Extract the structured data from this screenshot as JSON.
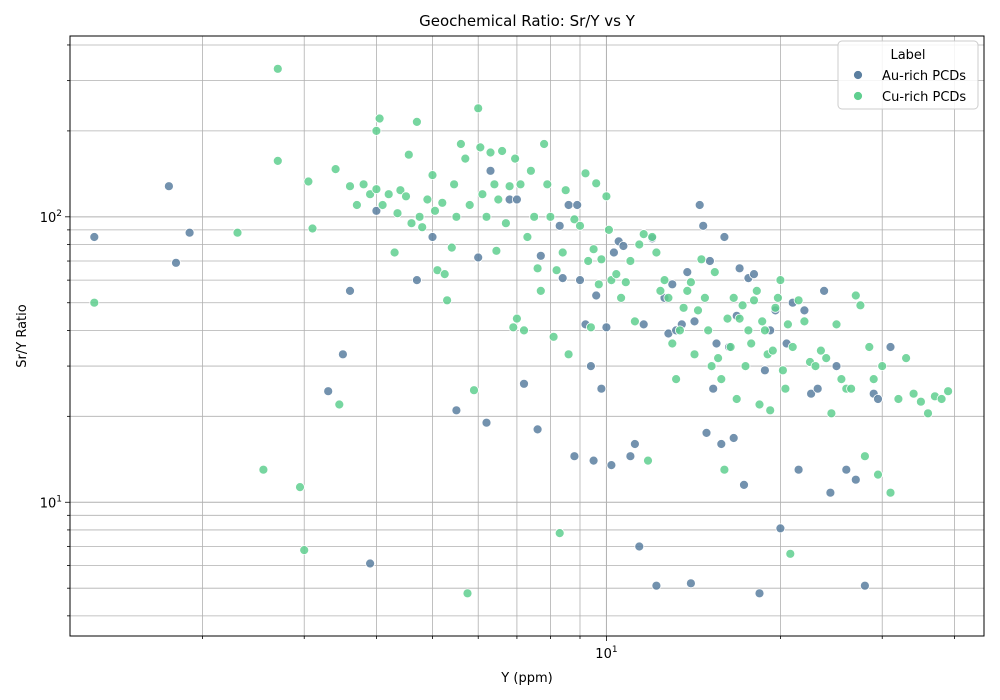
{
  "chart_data": {
    "type": "scatter",
    "title": "Geochemical Ratio: Sr/Y vs Y",
    "xlabel": "Y (ppm)",
    "ylabel": "Sr/Y Ratio",
    "xscale": "log",
    "yscale": "log",
    "xlim": [
      1.18,
      45
    ],
    "ylim": [
      3.4,
      430
    ],
    "x_major_ticks": [
      {
        "value": 10,
        "label": "10^1"
      }
    ],
    "y_major_ticks": [
      {
        "value": 10,
        "label": "10^1"
      },
      {
        "value": 100,
        "label": "10^2"
      }
    ],
    "grid": true,
    "legend": {
      "title": "Label",
      "placement": "top-right"
    },
    "series": [
      {
        "name": "Au-rich PCDs",
        "color": "#5b7fa0",
        "points": [
          [
            1.3,
            85
          ],
          [
            1.75,
            128
          ],
          [
            1.8,
            69
          ],
          [
            1.9,
            88
          ],
          [
            3.3,
            24.5
          ],
          [
            3.5,
            33
          ],
          [
            3.6,
            55
          ],
          [
            3.9,
            6.1
          ],
          [
            4.0,
            105
          ],
          [
            4.7,
            60
          ],
          [
            5.0,
            85
          ],
          [
            5.5,
            21
          ],
          [
            6.0,
            72
          ],
          [
            6.2,
            19
          ],
          [
            6.3,
            145
          ],
          [
            6.8,
            115
          ],
          [
            7.0,
            115
          ],
          [
            7.2,
            26
          ],
          [
            7.6,
            18
          ],
          [
            7.7,
            73
          ],
          [
            8.3,
            93
          ],
          [
            8.4,
            61
          ],
          [
            8.6,
            110
          ],
          [
            8.8,
            14.5
          ],
          [
            8.9,
            110
          ],
          [
            9.0,
            60
          ],
          [
            9.2,
            42
          ],
          [
            9.4,
            30
          ],
          [
            9.5,
            14
          ],
          [
            9.6,
            53
          ],
          [
            9.8,
            25
          ],
          [
            10.0,
            41
          ],
          [
            10.2,
            13.5
          ],
          [
            10.3,
            75
          ],
          [
            10.5,
            82
          ],
          [
            10.7,
            79
          ],
          [
            11.0,
            14.5
          ],
          [
            11.2,
            16
          ],
          [
            11.4,
            7
          ],
          [
            11.6,
            42
          ],
          [
            12.0,
            84
          ],
          [
            12.2,
            5.1
          ],
          [
            12.6,
            52
          ],
          [
            12.8,
            39
          ],
          [
            13.0,
            58
          ],
          [
            13.2,
            40
          ],
          [
            13.5,
            42
          ],
          [
            13.8,
            64
          ],
          [
            14.0,
            5.2
          ],
          [
            14.2,
            43
          ],
          [
            14.5,
            110
          ],
          [
            14.7,
            93
          ],
          [
            14.9,
            17.5
          ],
          [
            15.1,
            70
          ],
          [
            15.3,
            25
          ],
          [
            15.5,
            36
          ],
          [
            15.8,
            16
          ],
          [
            16.0,
            85
          ],
          [
            16.3,
            35
          ],
          [
            16.6,
            16.8
          ],
          [
            16.8,
            45
          ],
          [
            17.0,
            66
          ],
          [
            17.3,
            11.5
          ],
          [
            17.6,
            61
          ],
          [
            18.0,
            63
          ],
          [
            18.4,
            4.8
          ],
          [
            18.8,
            29
          ],
          [
            19.2,
            40
          ],
          [
            19.6,
            47
          ],
          [
            20.0,
            8.1
          ],
          [
            20.5,
            36
          ],
          [
            21.0,
            50
          ],
          [
            21.5,
            13
          ],
          [
            22.0,
            47
          ],
          [
            22.6,
            24
          ],
          [
            23.2,
            25
          ],
          [
            23.8,
            55
          ],
          [
            24.4,
            10.8
          ],
          [
            25.0,
            30
          ],
          [
            26.0,
            13
          ],
          [
            27.0,
            12
          ],
          [
            28.0,
            5.1
          ],
          [
            29.0,
            24
          ],
          [
            29.5,
            23
          ],
          [
            31.0,
            35
          ]
        ]
      },
      {
        "name": "Cu-rich PCDs",
        "color": "#5fcf8f",
        "points": [
          [
            1.3,
            50
          ],
          [
            2.3,
            88
          ],
          [
            2.55,
            13
          ],
          [
            2.7,
            330
          ],
          [
            2.7,
            157
          ],
          [
            2.95,
            11.3
          ],
          [
            3.0,
            6.8
          ],
          [
            3.05,
            133
          ],
          [
            3.1,
            91
          ],
          [
            3.4,
            147
          ],
          [
            3.45,
            22
          ],
          [
            3.6,
            128
          ],
          [
            3.7,
            110
          ],
          [
            3.8,
            130
          ],
          [
            3.9,
            120
          ],
          [
            4.0,
            125
          ],
          [
            4.0,
            200
          ],
          [
            4.05,
            221
          ],
          [
            4.1,
            110
          ],
          [
            4.2,
            120
          ],
          [
            4.3,
            75
          ],
          [
            4.35,
            103
          ],
          [
            4.4,
            124
          ],
          [
            4.5,
            118
          ],
          [
            4.55,
            165
          ],
          [
            4.6,
            95
          ],
          [
            4.7,
            215
          ],
          [
            4.75,
            100
          ],
          [
            4.8,
            92
          ],
          [
            4.9,
            115
          ],
          [
            5.0,
            140
          ],
          [
            5.05,
            105
          ],
          [
            5.1,
            65
          ],
          [
            5.2,
            112
          ],
          [
            5.25,
            63
          ],
          [
            5.3,
            51
          ],
          [
            5.4,
            78
          ],
          [
            5.45,
            130
          ],
          [
            5.5,
            100
          ],
          [
            5.6,
            180
          ],
          [
            5.7,
            160
          ],
          [
            5.75,
            4.8
          ],
          [
            5.8,
            110
          ],
          [
            5.9,
            24.7
          ],
          [
            6.0,
            240
          ],
          [
            6.05,
            175
          ],
          [
            6.1,
            120
          ],
          [
            6.2,
            100
          ],
          [
            6.3,
            168
          ],
          [
            6.4,
            130
          ],
          [
            6.45,
            76
          ],
          [
            6.5,
            115
          ],
          [
            6.6,
            170
          ],
          [
            6.7,
            95
          ],
          [
            6.8,
            128
          ],
          [
            6.9,
            41
          ],
          [
            6.95,
            160
          ],
          [
            7.0,
            44
          ],
          [
            7.1,
            130
          ],
          [
            7.2,
            40
          ],
          [
            7.3,
            85
          ],
          [
            7.4,
            145
          ],
          [
            7.5,
            100
          ],
          [
            7.6,
            66
          ],
          [
            7.7,
            55
          ],
          [
            7.8,
            180
          ],
          [
            7.9,
            130
          ],
          [
            8.0,
            100
          ],
          [
            8.1,
            38
          ],
          [
            8.2,
            65
          ],
          [
            8.3,
            7.8
          ],
          [
            8.4,
            75
          ],
          [
            8.5,
            124
          ],
          [
            8.6,
            33
          ],
          [
            8.8,
            98
          ],
          [
            9.0,
            93
          ],
          [
            9.2,
            142
          ],
          [
            9.3,
            70
          ],
          [
            9.4,
            41
          ],
          [
            9.5,
            77
          ],
          [
            9.6,
            131
          ],
          [
            9.7,
            58
          ],
          [
            9.8,
            71
          ],
          [
            10.0,
            118
          ],
          [
            10.1,
            90
          ],
          [
            10.2,
            60
          ],
          [
            10.4,
            63
          ],
          [
            10.6,
            52
          ],
          [
            10.8,
            59
          ],
          [
            11.0,
            70
          ],
          [
            11.2,
            43
          ],
          [
            11.4,
            80
          ],
          [
            11.6,
            87
          ],
          [
            11.8,
            14
          ],
          [
            12.0,
            85
          ],
          [
            12.2,
            75
          ],
          [
            12.4,
            55
          ],
          [
            12.6,
            60
          ],
          [
            12.8,
            52
          ],
          [
            13.0,
            36
          ],
          [
            13.2,
            27
          ],
          [
            13.4,
            40
          ],
          [
            13.6,
            48
          ],
          [
            13.8,
            55
          ],
          [
            14.0,
            59
          ],
          [
            14.2,
            33
          ],
          [
            14.4,
            47
          ],
          [
            14.6,
            71
          ],
          [
            14.8,
            52
          ],
          [
            15.0,
            40
          ],
          [
            15.2,
            30
          ],
          [
            15.4,
            64
          ],
          [
            15.6,
            32
          ],
          [
            15.8,
            27
          ],
          [
            16.0,
            13
          ],
          [
            16.2,
            44
          ],
          [
            16.4,
            35
          ],
          [
            16.6,
            52
          ],
          [
            16.8,
            23
          ],
          [
            17.0,
            44
          ],
          [
            17.2,
            49
          ],
          [
            17.4,
            30
          ],
          [
            17.6,
            40
          ],
          [
            17.8,
            36
          ],
          [
            18.0,
            51
          ],
          [
            18.2,
            55
          ],
          [
            18.4,
            22
          ],
          [
            18.6,
            43
          ],
          [
            18.8,
            40
          ],
          [
            19.0,
            33
          ],
          [
            19.2,
            21
          ],
          [
            19.4,
            34
          ],
          [
            19.6,
            48
          ],
          [
            19.8,
            52
          ],
          [
            20.0,
            60
          ],
          [
            20.2,
            29
          ],
          [
            20.4,
            25
          ],
          [
            20.6,
            42
          ],
          [
            20.8,
            6.6
          ],
          [
            21.0,
            35
          ],
          [
            21.5,
            51
          ],
          [
            22.0,
            43
          ],
          [
            22.5,
            31
          ],
          [
            23.0,
            30
          ],
          [
            23.5,
            34
          ],
          [
            24.0,
            32
          ],
          [
            24.5,
            20.5
          ],
          [
            25.0,
            42
          ],
          [
            25.5,
            27
          ],
          [
            26.0,
            25
          ],
          [
            26.5,
            25
          ],
          [
            27.0,
            53
          ],
          [
            27.5,
            49
          ],
          [
            28.0,
            14.5
          ],
          [
            28.5,
            35
          ],
          [
            29.0,
            27
          ],
          [
            29.5,
            12.5
          ],
          [
            30.0,
            30
          ],
          [
            31.0,
            10.8
          ],
          [
            32.0,
            23
          ],
          [
            33.0,
            32
          ],
          [
            34.0,
            24
          ],
          [
            35.0,
            22.5
          ],
          [
            36.0,
            20.5
          ],
          [
            37.0,
            23.5
          ],
          [
            38.0,
            23
          ],
          [
            39.0,
            24.5
          ]
        ]
      }
    ]
  }
}
